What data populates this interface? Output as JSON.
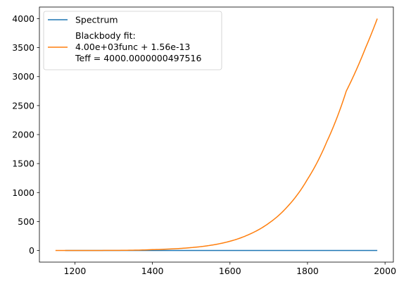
{
  "chart_data": {
    "type": "line",
    "title": "",
    "xlabel": "",
    "ylabel": "",
    "xlim": [
      1108.5,
      2021.5
    ],
    "ylim": [
      -200,
      4200
    ],
    "xticks": [
      1200,
      1400,
      1600,
      1800,
      2000
    ],
    "yticks": [
      0,
      500,
      1000,
      1500,
      2000,
      2500,
      3000,
      3500,
      4000
    ],
    "grid": false,
    "legend_position": "top-left",
    "series": [
      {
        "name": "Spectrum",
        "color": "#1f77b4",
        "x": [
          1175,
          1250,
          1350,
          1450,
          1550,
          1650,
          1750,
          1850,
          1950,
          1980
        ],
        "y": [
          0,
          0,
          0,
          0,
          0,
          0,
          0,
          0,
          0,
          0
        ]
      },
      {
        "name_lines": [
          "Blackbody fit:",
          "4.00e+03func + 1.56e-13",
          "Teff = 4000.0000000497516"
        ],
        "color": "#ff7f0e",
        "x": [
          1150,
          1200,
          1300,
          1400,
          1500,
          1550,
          1600,
          1650,
          1700,
          1750,
          1800,
          1850,
          1900,
          1950,
          1980
        ],
        "y": [
          0,
          0,
          2,
          15,
          50,
          90,
          160,
          280,
          470,
          770,
          1230,
          1880,
          2750,
          3500,
          4000
        ]
      }
    ]
  }
}
